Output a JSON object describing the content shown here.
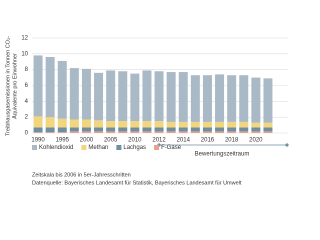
{
  "chart_data": {
    "type": "stacked_bar",
    "y_label": [
      "Treibhausgasemissionen in Tonnen CO₂-",
      "Äquivalente pro Einwohner"
    ],
    "categories": [
      "1990",
      null,
      "1995",
      null,
      "2000",
      null,
      "2005",
      null,
      "2010",
      null,
      "2012",
      null,
      "2014",
      null,
      "2016",
      null,
      "2018",
      null,
      "2020",
      null
    ],
    "series": [
      {
        "name": "Kohlendioxid",
        "color": "#a9b9c6",
        "values": [
          7.7,
          7.6,
          7.3,
          6.5,
          6.4,
          6.0,
          6.4,
          6.3,
          6.0,
          6.4,
          6.3,
          6.3,
          6.3,
          5.9,
          5.9,
          6.0,
          5.9,
          5.9,
          5.7,
          5.6
        ]
      },
      {
        "name": "Methan",
        "color": "#f2d57c",
        "values": [
          1.4,
          1.3,
          1.1,
          1.0,
          1.0,
          0.9,
          0.8,
          0.8,
          0.8,
          0.8,
          0.8,
          0.7,
          0.7,
          0.7,
          0.7,
          0.7,
          0.7,
          0.7,
          0.6,
          0.6
        ]
      },
      {
        "name": "Lachgas",
        "color": "#6e8fa3",
        "values": [
          0.6,
          0.6,
          0.6,
          0.5,
          0.5,
          0.5,
          0.5,
          0.5,
          0.5,
          0.5,
          0.5,
          0.5,
          0.5,
          0.5,
          0.5,
          0.5,
          0.5,
          0.5,
          0.5,
          0.5
        ]
      },
      {
        "name": "F-Gase",
        "color": "#e8a08a",
        "values": [
          0.1,
          0.1,
          0.1,
          0.2,
          0.2,
          0.2,
          0.2,
          0.2,
          0.2,
          0.2,
          0.2,
          0.2,
          0.2,
          0.2,
          0.2,
          0.2,
          0.2,
          0.2,
          0.2,
          0.2
        ]
      }
    ],
    "ylim": [
      0,
      12
    ],
    "yticks": [
      0,
      2,
      4,
      6,
      8,
      10,
      12
    ],
    "grid": true,
    "legend": "bottom",
    "annotation": "Bewertungszeitraum",
    "notes": [
      "Zeitskala bis 2006 in 5er-Jahresschritten",
      "Datenquelle: Bayerisches Landesamt für Statistik, Bayerisches Landesamt für Umwelt"
    ]
  }
}
